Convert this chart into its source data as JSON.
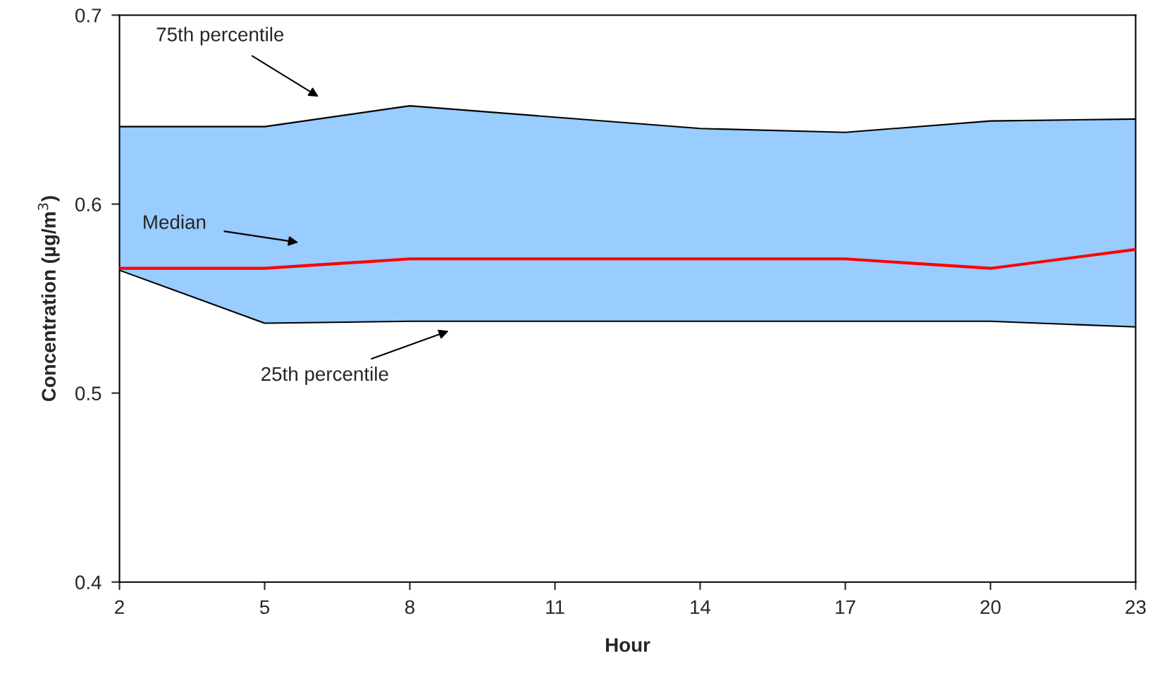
{
  "chart_data": {
    "type": "line",
    "xlabel": "Hour",
    "ylabel": "Concentration (µg/m$^{3}$)",
    "x": [
      2,
      5,
      8,
      11,
      14,
      17,
      20,
      23
    ],
    "series": [
      {
        "color": "#000000",
        "values": [
          0.641,
          0.641,
          0.652,
          0.646,
          0.64,
          0.638,
          0.644,
          0.645
        ]
      },
      {
        "color": "#ff0000",
        "values": [
          0.566,
          0.566,
          0.571,
          0.571,
          0.571,
          0.571,
          0.566,
          0.576
        ],
        "lower": [
          0.565,
          0.537,
          0.538,
          0.538,
          0.538,
          0.538,
          0.538,
          0.535
        ],
        "upper": [
          0.641,
          0.641,
          0.652,
          0.646,
          0.64,
          0.638,
          0.644,
          0.645
        ]
      },
      {
        "color": "#000000",
        "values": [
          0.565,
          0.537,
          0.538,
          0.538,
          0.538,
          0.538,
          0.538,
          0.535
        ]
      }
    ],
    "xlim": [
      2,
      23
    ],
    "xticks": [
      2,
      5,
      8,
      11,
      14,
      17,
      20,
      23
    ],
    "ylim": [
      0.4,
      0.7
    ],
    "yticks": [
      0.4,
      0.5,
      0.6,
      0.7
    ],
    "grid": false,
    "marker": "none",
    "line_style": "solid",
    "annotations": [
      "75th percentile",
      "Median",
      "25th percentile"
    ]
  }
}
